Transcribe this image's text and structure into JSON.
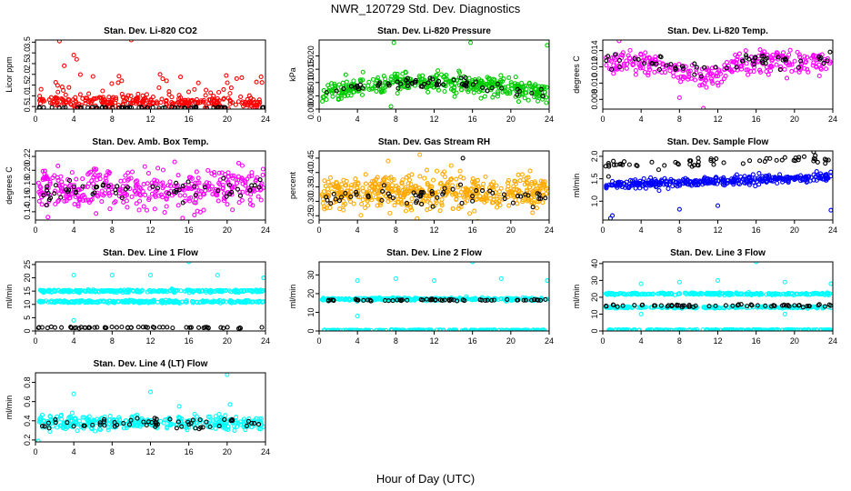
{
  "figure": {
    "title": "NWR_120729  Std. Dev. Diagnostics",
    "xlabel": "Hour of Day (UTC)"
  },
  "chart_data": [
    {
      "type": "scatter",
      "title": "Stan. Dev. Li-820 CO2",
      "ylabel": "Licor ppm",
      "xlim": [
        0,
        24
      ],
      "ylim": [
        0.38,
        3.6
      ],
      "xticks": [
        0,
        4,
        8,
        12,
        16,
        20,
        24
      ],
      "yticks": [
        0.5,
        1.0,
        1.5,
        2.0,
        2.5,
        3.0,
        3.5
      ],
      "ytick_labels": [
        "0.5",
        "1.0",
        "1.5",
        "2.0",
        "2.5",
        "3.0",
        "3.5"
      ],
      "series": [
        {
          "color": "#ff0000",
          "base": 0.7,
          "spread": 0.25,
          "n": 320,
          "extra": [
            [
              2.5,
              3.55
            ],
            [
              10,
              3.6
            ],
            [
              4,
              2.9
            ],
            [
              4.3,
              2.7
            ],
            [
              13,
              2.0
            ],
            [
              3,
              2.4
            ],
            [
              6,
              1.9
            ],
            [
              9,
              1.7
            ],
            [
              17,
              1.6
            ],
            [
              21,
              1.8
            ]
          ]
        },
        {
          "color": "#000000",
          "base": 0.45,
          "spread": 0.03,
          "n": 60
        }
      ]
    },
    {
      "type": "scatter",
      "title": "Stan. Dev. Li-820 Pressure",
      "ylabel": "kPa",
      "xlim": [
        0,
        24
      ],
      "ylim": [
        0,
        0.026
      ],
      "xticks": [
        0,
        4,
        8,
        12,
        16,
        20,
        24
      ],
      "yticks": [
        0,
        0.005,
        0.01,
        0.015,
        0.02
      ],
      "ytick_labels": [
        "0.000",
        "0.005",
        "0.010",
        "0.015",
        "0.020"
      ],
      "series": [
        {
          "color": "#00cc00",
          "base": 0.006,
          "spread": 0.003,
          "n": 420,
          "hump": 0.004,
          "extra": [
            [
              7.8,
              0.025
            ],
            [
              15.8,
              0.025
            ],
            [
              23.8,
              0.024
            ],
            [
              7.5,
              0.001
            ]
          ]
        },
        {
          "color": "#000000",
          "base": 0.006,
          "spread": 0.0015,
          "n": 60,
          "hump": 0.004
        }
      ]
    },
    {
      "type": "scatter",
      "title": "Stan. Dev. Li-820 Temp.",
      "ylabel": "degrees C",
      "xlim": [
        0,
        24
      ],
      "ylim": [
        0.0068,
        0.0153
      ],
      "xticks": [
        0,
        4,
        8,
        12,
        16,
        20,
        24
      ],
      "yticks": [
        0.008,
        0.01,
        0.012,
        0.014
      ],
      "ytick_labels": [
        "0.008",
        "0.010",
        "0.012",
        "0.014"
      ],
      "series": [
        {
          "color": "#ff00ff",
          "base": 0.0125,
          "spread": 0.0012,
          "n": 300,
          "dip": 0.002,
          "extra": [
            [
              1.7,
              0.0152
            ],
            [
              10.5,
              0.0069
            ],
            [
              8,
              0.0082
            ]
          ]
        },
        {
          "color": "#000000",
          "base": 0.0128,
          "spread": 0.0008,
          "n": 60,
          "dip": 0.0015
        }
      ]
    },
    {
      "type": "scatter",
      "title": "Stan. Dev. Amb. Box Temp.",
      "ylabel": "degrees C",
      "xlim": [
        0,
        24
      ],
      "ylim": [
        0.128,
        0.228
      ],
      "xticks": [
        0,
        4,
        8,
        12,
        16,
        20,
        24
      ],
      "yticks": [
        0.14,
        0.16,
        0.18,
        0.2,
        0.22
      ],
      "ytick_labels": [
        "0.14",
        "0.16",
        "0.18",
        "0.20",
        "0.22"
      ],
      "series": [
        {
          "color": "#ff00ff",
          "base": 0.173,
          "spread": 0.024,
          "n": 380,
          "extra": []
        },
        {
          "color": "#000000",
          "base": 0.17,
          "spread": 0.014,
          "n": 60
        }
      ]
    },
    {
      "type": "scatter",
      "title": "Stan. Dev. Gas Stream RH",
      "ylabel": "percent",
      "xlim": [
        0,
        24
      ],
      "ylim": [
        0.235,
        0.475
      ],
      "xticks": [
        0,
        4,
        8,
        12,
        16,
        20,
        24
      ],
      "yticks": [
        0.25,
        0.3,
        0.35,
        0.4,
        0.45
      ],
      "ytick_labels": [
        "0.25",
        "0.30",
        "0.35",
        "0.40",
        "0.45"
      ],
      "series": [
        {
          "color": "#ffaa00",
          "base": 0.33,
          "spread": 0.05,
          "n": 520,
          "extra": [
            [
              10.5,
              0.462
            ],
            [
              7.2,
              0.44
            ]
          ]
        },
        {
          "color": "#000000",
          "base": 0.32,
          "spread": 0.025,
          "n": 60,
          "extra": [
            [
              15,
              0.45
            ]
          ]
        }
      ]
    },
    {
      "type": "scatter",
      "title": "Stan. Dev. Sample Flow",
      "ylabel": "ml/min",
      "xlim": [
        0,
        24
      ],
      "ylim": [
        0.58,
        2.12
      ],
      "xticks": [
        0,
        4,
        8,
        12,
        16,
        20,
        24
      ],
      "yticks": [
        1.0,
        1.5,
        2.0
      ],
      "ytick_labels": [
        "1.0",
        "1.5",
        "2.0"
      ],
      "series": [
        {
          "color": "#0000ff",
          "base": 1.35,
          "spread": 0.08,
          "n": 380,
          "rise": 0.2,
          "extra": [
            [
              0.8,
              0.62
            ],
            [
              1,
              0.68
            ],
            [
              23.8,
              0.8
            ],
            [
              8,
              0.82
            ],
            [
              12,
              0.9
            ]
          ]
        },
        {
          "color": "#000000",
          "base": 1.8,
          "spread": 0.08,
          "n": 60,
          "rise": 0.15,
          "extra": [
            [
              22,
              2.1
            ],
            [
              0.6,
              1.55
            ]
          ]
        }
      ]
    },
    {
      "type": "scatter",
      "title": "Stan. Dev. Line 1 Flow",
      "ylabel": "ml/min",
      "xlim": [
        0,
        24
      ],
      "ylim": [
        0,
        26
      ],
      "xticks": [
        0,
        4,
        8,
        12,
        16,
        20,
        24
      ],
      "yticks": [
        0,
        5,
        10,
        15,
        20,
        25
      ],
      "ytick_labels": [
        "0",
        "5",
        "10",
        "15",
        "20",
        "25"
      ],
      "series": [
        {
          "color": "#00ffff",
          "base": 15,
          "spread": 0.4,
          "n": 260,
          "extra": [
            [
              4,
              21
            ],
            [
              8,
              21
            ],
            [
              12,
              21
            ],
            [
              16,
              26
            ],
            [
              19,
              21
            ],
            [
              23.8,
              20
            ],
            [
              4,
              4
            ]
          ]
        },
        {
          "color": "#00ffff",
          "base": 11,
          "spread": 0.4,
          "n": 260,
          "extra": []
        },
        {
          "color": "#000000",
          "base": 1.3,
          "spread": 0.2,
          "n": 60
        }
      ]
    },
    {
      "type": "scatter",
      "title": "Stan. Dev. Line 2 Flow",
      "ylabel": "ml/min",
      "xlim": [
        0,
        24
      ],
      "ylim": [
        0,
        37
      ],
      "xticks": [
        0,
        4,
        8,
        12,
        16,
        20,
        24
      ],
      "yticks": [
        0,
        10,
        20,
        30
      ],
      "ytick_labels": [
        "0",
        "10",
        "20",
        "30"
      ],
      "series": [
        {
          "color": "#00ffff",
          "base": 17,
          "spread": 0.6,
          "n": 300,
          "extra": [
            [
              4,
              27
            ],
            [
              8,
              28
            ],
            [
              12,
              27
            ],
            [
              16,
              37
            ],
            [
              19,
              28
            ],
            [
              23.8,
              27
            ],
            [
              4,
              8
            ]
          ]
        },
        {
          "color": "#00ffff",
          "base": 0.4,
          "spread": 0.2,
          "n": 200
        },
        {
          "color": "#000000",
          "base": 16.5,
          "spread": 0.5,
          "n": 60
        }
      ]
    },
    {
      "type": "scatter",
      "title": "Stan. Dev. Line 3 Flow",
      "ylabel": "ml/min",
      "xlim": [
        0,
        24
      ],
      "ylim": [
        0,
        41
      ],
      "xticks": [
        0,
        4,
        8,
        12,
        16,
        20,
        24
      ],
      "yticks": [
        0,
        10,
        20,
        30,
        40
      ],
      "ytick_labels": [
        "0",
        "10",
        "20",
        "30",
        "40"
      ],
      "series": [
        {
          "color": "#00ffff",
          "base": 22,
          "spread": 0.5,
          "n": 260,
          "extra": [
            [
              4,
              28
            ],
            [
              8,
              29
            ],
            [
              12,
              30
            ],
            [
              16,
              41
            ],
            [
              19,
              29
            ],
            [
              23.8,
              28
            ]
          ]
        },
        {
          "color": "#00ffff",
          "base": 14,
          "spread": 0.4,
          "n": 200,
          "extra": [
            [
              4,
              10
            ],
            [
              19,
              10
            ]
          ]
        },
        {
          "color": "#00ffff",
          "base": 0.6,
          "spread": 0.2,
          "n": 200
        },
        {
          "color": "#000000",
          "base": 15,
          "spread": 0.7,
          "n": 60
        }
      ]
    },
    {
      "type": "scatter",
      "title": "Stan. Dev. Line 4 (LT) Flow",
      "ylabel": "ml/min",
      "xlim": [
        0,
        24
      ],
      "ylim": [
        0.18,
        0.9
      ],
      "xticks": [
        0,
        4,
        8,
        12,
        16,
        20,
        24
      ],
      "yticks": [
        0.2,
        0.4,
        0.6,
        0.8
      ],
      "ytick_labels": [
        "0.2",
        "0.4",
        "0.6",
        "0.8"
      ],
      "series": [
        {
          "color": "#00ffff",
          "base": 0.38,
          "spread": 0.06,
          "n": 360,
          "extra": [
            [
              4,
              0.68
            ],
            [
              12,
              0.7
            ],
            [
              20,
              0.88
            ],
            [
              0.3,
              0.19
            ],
            [
              15,
              0.55
            ],
            [
              20.3,
              0.57
            ]
          ]
        },
        {
          "color": "#000000",
          "base": 0.37,
          "spread": 0.05,
          "n": 60
        }
      ]
    }
  ]
}
